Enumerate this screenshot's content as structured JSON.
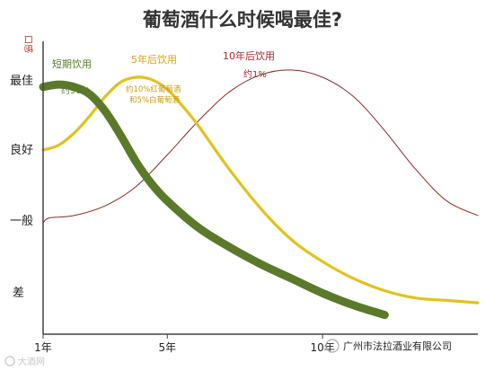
{
  "chart_data": {
    "type": "line",
    "title": "葡萄酒什么时候喝最佳?",
    "ylabel": "口感",
    "y_levels": [
      "最佳",
      "良好",
      "一般",
      "差"
    ],
    "ylim": [
      0,
      100
    ],
    "xlim": [
      1,
      15
    ],
    "x_ticks": [
      {
        "value": 1,
        "label": "1年"
      },
      {
        "value": 5,
        "label": "5年"
      },
      {
        "value": 10,
        "label": "10年"
      }
    ],
    "series": [
      {
        "name": "短期饮用",
        "color": "#5a7a2a",
        "annotation": "约90%",
        "x": [
          1,
          1.5,
          2,
          2.5,
          3,
          3.5,
          4,
          4.5,
          5,
          6,
          7,
          8,
          9,
          10,
          11,
          12
        ],
        "y": [
          96,
          97,
          96,
          93,
          86,
          76,
          65,
          56,
          49,
          38,
          30,
          23,
          17,
          11,
          6,
          2
        ]
      },
      {
        "name": "5年后饮用",
        "color": "#e2c21e",
        "annotation": "约10%红葡萄酒\n和5%白葡萄酒",
        "x": [
          1,
          1.5,
          2,
          2.5,
          3,
          3.5,
          4,
          4.5,
          5,
          5.5,
          6,
          7,
          8,
          9,
          10,
          11,
          12,
          13,
          14,
          15
        ],
        "y": [
          70,
          72,
          77,
          84,
          92,
          98,
          100,
          99,
          95,
          88,
          80,
          62,
          46,
          33,
          24,
          17,
          12,
          9,
          8,
          7
        ]
      },
      {
        "name": "10年后饮用",
        "color": "#8c2a2a",
        "annotation": "约1%",
        "x": [
          1,
          1.2,
          2,
          3,
          4,
          5,
          6,
          7,
          8,
          9,
          10,
          11,
          12,
          13,
          14,
          15
        ],
        "y": [
          40,
          42,
          43,
          47,
          55,
          68,
          82,
          94,
          101,
          103,
          100,
          92,
          78,
          62,
          49,
          43
        ]
      }
    ]
  },
  "watermark_left": "大酒网",
  "watermark_right": "广州市法拉酒业有限公司"
}
